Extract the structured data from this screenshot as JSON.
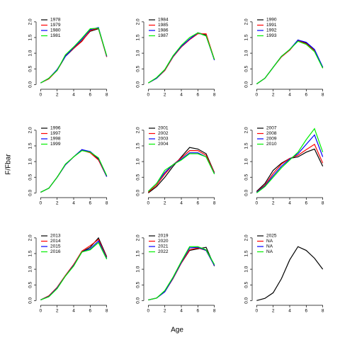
{
  "xlabel": "Age",
  "ylabel": "F/Fbar",
  "chart_data": [
    {
      "type": "line",
      "x": [
        0,
        1,
        2,
        3,
        4,
        5,
        6,
        7,
        8
      ],
      "xlim": [
        -0.2,
        8.2
      ],
      "ylim": [
        -0.06,
        2.2
      ],
      "xticks": [
        0,
        2,
        4,
        6,
        8
      ],
      "yticks": [
        {
          "value": 0,
          "label": "0.0"
        },
        {
          "value": 0.5,
          "label": "0.5"
        },
        {
          "value": 1,
          "label": "1.0"
        },
        {
          "value": 1.5,
          "label": "1.5"
        },
        {
          "value": 2,
          "label": "2.0"
        }
      ],
      "series": [
        {
          "name": "1978",
          "color": "#000000",
          "values": [
            0.05,
            0.2,
            0.45,
            0.9,
            1.15,
            1.4,
            1.7,
            1.78,
            0.9
          ]
        },
        {
          "name": "1979",
          "color": "#ff0000",
          "values": [
            0.05,
            0.18,
            0.45,
            0.92,
            1.15,
            1.38,
            1.72,
            1.8,
            0.88
          ]
        },
        {
          "name": "1980",
          "color": "#0000ff",
          "values": [
            0.05,
            0.2,
            0.48,
            0.9,
            1.18,
            1.45,
            1.75,
            1.82,
            0.9
          ]
        },
        {
          "name": "1981",
          "color": "#00ee00",
          "values": [
            0.05,
            0.2,
            0.45,
            0.95,
            1.2,
            1.48,
            1.78,
            1.8,
            0.92
          ]
        }
      ]
    },
    {
      "type": "line",
      "x": [
        0,
        1,
        2,
        3,
        4,
        5,
        6,
        7,
        8
      ],
      "xlim": [
        -0.2,
        8.2
      ],
      "ylim": [
        -0.06,
        2.2
      ],
      "xticks": [
        0,
        2,
        4,
        6,
        8
      ],
      "yticks": [
        {
          "value": 0,
          "label": "0.0"
        },
        {
          "value": 0.5,
          "label": "0.5"
        },
        {
          "value": 1,
          "label": "1.0"
        },
        {
          "value": 1.5,
          "label": "1.5"
        },
        {
          "value": 2,
          "label": "2.0"
        }
      ],
      "series": [
        {
          "name": "1984",
          "color": "#000000",
          "values": [
            0.05,
            0.2,
            0.45,
            0.9,
            1.2,
            1.45,
            1.65,
            1.58,
            0.78
          ]
        },
        {
          "name": "1985",
          "color": "#ff0000",
          "values": [
            0.05,
            0.2,
            0.45,
            0.88,
            1.2,
            1.43,
            1.62,
            1.62,
            0.8
          ]
        },
        {
          "name": "1986",
          "color": "#0000ff",
          "values": [
            0.05,
            0.2,
            0.47,
            0.9,
            1.22,
            1.45,
            1.65,
            1.55,
            0.78
          ]
        },
        {
          "name": "1987",
          "color": "#00ee00",
          "values": [
            0.05,
            0.22,
            0.48,
            0.92,
            1.25,
            1.5,
            1.65,
            1.55,
            0.8
          ]
        }
      ]
    },
    {
      "type": "line",
      "x": [
        0,
        1,
        2,
        3,
        4,
        5,
        6,
        7,
        8
      ],
      "xlim": [
        -0.2,
        8.2
      ],
      "ylim": [
        -0.06,
        2.2
      ],
      "xticks": [
        0,
        2,
        4,
        6,
        8
      ],
      "yticks": [
        {
          "value": 0,
          "label": "0.0"
        },
        {
          "value": 0.5,
          "label": "0.5"
        },
        {
          "value": 1,
          "label": "1.0"
        },
        {
          "value": 1.5,
          "label": "1.5"
        },
        {
          "value": 2,
          "label": "2.0"
        }
      ],
      "series": [
        {
          "name": "1990",
          "color": "#000000",
          "values": [
            0.02,
            0.2,
            0.55,
            0.9,
            1.1,
            1.42,
            1.32,
            1.1,
            0.55
          ]
        },
        {
          "name": "1991",
          "color": "#ff0000",
          "values": [
            0.02,
            0.2,
            0.55,
            0.88,
            1.1,
            1.4,
            1.3,
            1.08,
            0.53
          ]
        },
        {
          "name": "1992",
          "color": "#0000ff",
          "values": [
            0.02,
            0.2,
            0.55,
            0.9,
            1.12,
            1.42,
            1.35,
            1.12,
            0.55
          ]
        },
        {
          "name": "1993",
          "color": "#00ee00",
          "values": [
            0.02,
            0.2,
            0.55,
            0.9,
            1.12,
            1.38,
            1.28,
            1.05,
            0.52
          ]
        }
      ]
    },
    {
      "type": "line",
      "x": [
        0,
        1,
        2,
        3,
        4,
        5,
        6,
        7,
        8
      ],
      "xlim": [
        -0.2,
        8.2
      ],
      "ylim": [
        -0.06,
        2.2
      ],
      "xticks": [
        0,
        2,
        4,
        6,
        8
      ],
      "yticks": [
        {
          "value": 0,
          "label": "0.0"
        },
        {
          "value": 0.5,
          "label": "0.5"
        },
        {
          "value": 1,
          "label": "1.0"
        },
        {
          "value": 1.5,
          "label": "1.5"
        },
        {
          "value": 2,
          "label": "2.0"
        }
      ],
      "series": [
        {
          "name": "1996",
          "color": "#000000",
          "values": [
            0.02,
            0.15,
            0.5,
            0.9,
            1.15,
            1.38,
            1.3,
            1.08,
            0.52
          ]
        },
        {
          "name": "1997",
          "color": "#ff0000",
          "values": [
            0.02,
            0.15,
            0.5,
            0.9,
            1.15,
            1.36,
            1.28,
            1.05,
            0.52
          ]
        },
        {
          "name": "1998",
          "color": "#0000ff",
          "values": [
            0.02,
            0.15,
            0.5,
            0.9,
            1.15,
            1.38,
            1.32,
            1.1,
            0.52
          ]
        },
        {
          "name": "1999",
          "color": "#00ee00",
          "values": [
            0.02,
            0.15,
            0.5,
            0.92,
            1.15,
            1.35,
            1.3,
            1.12,
            0.55
          ]
        }
      ]
    },
    {
      "type": "line",
      "x": [
        0,
        1,
        2,
        3,
        4,
        5,
        6,
        7,
        8
      ],
      "xlim": [
        -0.2,
        8.2
      ],
      "ylim": [
        -0.06,
        2.2
      ],
      "xticks": [
        0,
        2,
        4,
        6,
        8
      ],
      "yticks": [
        {
          "value": 0,
          "label": "0.0"
        },
        {
          "value": 0.5,
          "label": "0.5"
        },
        {
          "value": 1,
          "label": "1.0"
        },
        {
          "value": 1.5,
          "label": "1.5"
        },
        {
          "value": 2,
          "label": "2.0"
        }
      ],
      "series": [
        {
          "name": "2001",
          "color": "#000000",
          "values": [
            0.0,
            0.2,
            0.5,
            0.85,
            1.15,
            1.45,
            1.4,
            1.25,
            0.65
          ]
        },
        {
          "name": "2002",
          "color": "#ff0000",
          "values": [
            0.02,
            0.25,
            0.6,
            0.9,
            1.12,
            1.35,
            1.35,
            1.2,
            0.65
          ]
        },
        {
          "name": "2003",
          "color": "#0000ff",
          "values": [
            0.05,
            0.3,
            0.65,
            0.9,
            1.08,
            1.28,
            1.28,
            1.15,
            0.62
          ]
        },
        {
          "name": "2004",
          "color": "#00ee00",
          "values": [
            0.05,
            0.3,
            0.72,
            0.9,
            1.05,
            1.25,
            1.25,
            1.15,
            0.6
          ]
        }
      ]
    },
    {
      "type": "line",
      "x": [
        0,
        1,
        2,
        3,
        4,
        5,
        6,
        7,
        8
      ],
      "xlim": [
        -0.2,
        8.2
      ],
      "ylim": [
        -0.06,
        2.2
      ],
      "xticks": [
        0,
        2,
        4,
        6,
        8
      ],
      "yticks": [
        {
          "value": 0,
          "label": "0.0"
        },
        {
          "value": 0.5,
          "label": "0.5"
        },
        {
          "value": 1,
          "label": "1.0"
        },
        {
          "value": 1.5,
          "label": "1.5"
        },
        {
          "value": 2,
          "label": "2.0"
        }
      ],
      "series": [
        {
          "name": "2007",
          "color": "#000000",
          "values": [
            0.05,
            0.3,
            0.72,
            0.95,
            1.1,
            1.15,
            1.3,
            1.4,
            0.85
          ]
        },
        {
          "name": "2008",
          "color": "#ff0000",
          "values": [
            0.03,
            0.25,
            0.62,
            0.92,
            1.1,
            1.2,
            1.38,
            1.55,
            0.95
          ]
        },
        {
          "name": "2009",
          "color": "#0000ff",
          "values": [
            0.02,
            0.22,
            0.55,
            0.85,
            1.08,
            1.25,
            1.55,
            1.85,
            1.15
          ]
        },
        {
          "name": "2010",
          "color": "#00ee00",
          "values": [
            0.0,
            0.2,
            0.5,
            0.8,
            1.05,
            1.3,
            1.7,
            2.05,
            1.3
          ]
        }
      ]
    },
    {
      "type": "line",
      "x": [
        0,
        1,
        2,
        3,
        4,
        5,
        6,
        7,
        8
      ],
      "xlim": [
        -0.2,
        8.2
      ],
      "ylim": [
        -0.06,
        2.2
      ],
      "xticks": [
        0,
        2,
        4,
        6,
        8
      ],
      "yticks": [
        {
          "value": 0,
          "label": "0.0"
        },
        {
          "value": 0.5,
          "label": "0.5"
        },
        {
          "value": 1,
          "label": "1.0"
        },
        {
          "value": 1.5,
          "label": "1.5"
        },
        {
          "value": 2,
          "label": "2.0"
        }
      ],
      "series": [
        {
          "name": "2013",
          "color": "#000000",
          "values": [
            0.02,
            0.15,
            0.42,
            0.8,
            1.15,
            1.55,
            1.7,
            2.0,
            1.4
          ]
        },
        {
          "name": "2014",
          "color": "#ff0000",
          "values": [
            0.02,
            0.15,
            0.42,
            0.8,
            1.15,
            1.58,
            1.75,
            1.95,
            1.38
          ]
        },
        {
          "name": "2015",
          "color": "#0000ff",
          "values": [
            0.02,
            0.13,
            0.4,
            0.78,
            1.12,
            1.55,
            1.65,
            1.9,
            1.35
          ]
        },
        {
          "name": "2016",
          "color": "#00ee00",
          "values": [
            0.02,
            0.12,
            0.38,
            0.78,
            1.1,
            1.55,
            1.62,
            1.85,
            1.32
          ]
        }
      ]
    },
    {
      "type": "line",
      "x": [
        0,
        1,
        2,
        3,
        4,
        5,
        6,
        7,
        8
      ],
      "xlim": [
        -0.2,
        8.2
      ],
      "ylim": [
        -0.06,
        2.2
      ],
      "xticks": [
        0,
        2,
        4,
        6,
        8
      ],
      "yticks": [
        {
          "value": 0,
          "label": "0.0"
        },
        {
          "value": 0.5,
          "label": "0.5"
        },
        {
          "value": 1,
          "label": "1.0"
        },
        {
          "value": 1.5,
          "label": "1.5"
        },
        {
          "value": 2,
          "label": "2.0"
        }
      ],
      "series": [
        {
          "name": "2019",
          "color": "#000000",
          "values": [
            0.02,
            0.08,
            0.3,
            0.72,
            1.2,
            1.6,
            1.65,
            1.7,
            1.1
          ]
        },
        {
          "name": "2020",
          "color": "#ff0000",
          "values": [
            0.02,
            0.08,
            0.28,
            0.7,
            1.2,
            1.62,
            1.68,
            1.6,
            1.12
          ]
        },
        {
          "name": "2021",
          "color": "#0000ff",
          "values": [
            0.02,
            0.08,
            0.28,
            0.72,
            1.22,
            1.68,
            1.7,
            1.6,
            1.12
          ]
        },
        {
          "name": "2022",
          "color": "#00ee00",
          "values": [
            0.02,
            0.08,
            0.32,
            0.75,
            1.25,
            1.72,
            1.72,
            1.62,
            1.15
          ]
        }
      ]
    },
    {
      "type": "line",
      "x": [
        0,
        1,
        2,
        3,
        4,
        5,
        6,
        7,
        8
      ],
      "xlim": [
        -0.2,
        8.2
      ],
      "ylim": [
        -0.06,
        2.2
      ],
      "xticks": [
        0,
        2,
        4,
        6,
        8
      ],
      "yticks": [
        {
          "value": 0,
          "label": "0.0"
        },
        {
          "value": 0.5,
          "label": "0.5"
        },
        {
          "value": 1,
          "label": "1.0"
        },
        {
          "value": 1.5,
          "label": "1.5"
        },
        {
          "value": 2,
          "label": "2.0"
        }
      ],
      "series": [
        {
          "name": "2025",
          "color": "#000000",
          "values": [
            0.0,
            0.07,
            0.25,
            0.7,
            1.3,
            1.72,
            1.6,
            1.35,
            1.0
          ]
        },
        {
          "name": "NA",
          "color": "#ff0000",
          "values": [
            null,
            null,
            null,
            null,
            null,
            null,
            null,
            null,
            null
          ]
        },
        {
          "name": "NA",
          "color": "#0000ff",
          "values": [
            null,
            null,
            null,
            null,
            null,
            null,
            null,
            null,
            null
          ]
        },
        {
          "name": "NA",
          "color": "#00ee00",
          "values": [
            null,
            null,
            null,
            null,
            null,
            null,
            null,
            null,
            null
          ]
        }
      ]
    }
  ]
}
